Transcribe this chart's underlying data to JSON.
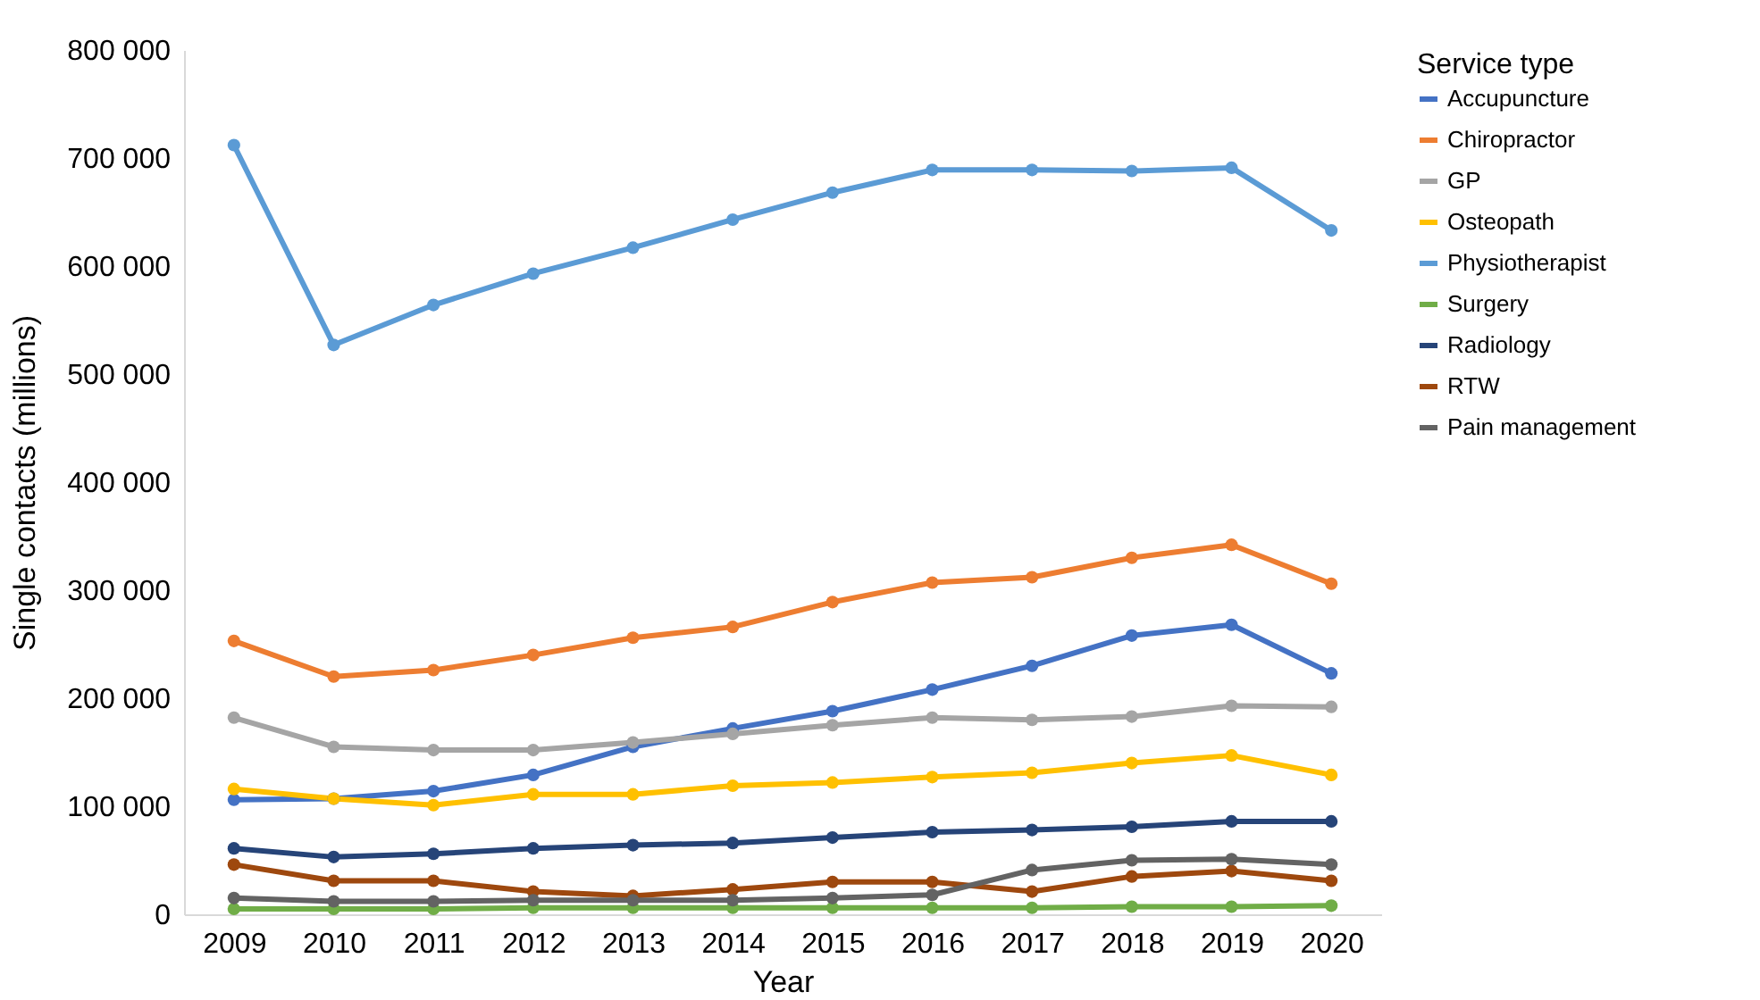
{
  "chart_data": {
    "type": "line",
    "xlabel": "Year",
    "ylabel": "Single contacts (millions)",
    "legend_title": "Service type",
    "legend": "right",
    "marker": "circle",
    "grid": false,
    "categories": [
      "2009",
      "2010",
      "2011",
      "2012",
      "2013",
      "2014",
      "2015",
      "2016",
      "2017",
      "2018",
      "2019",
      "2020"
    ],
    "ylim": [
      0,
      800000
    ],
    "yticks": [
      {
        "value": 0,
        "label": "0"
      },
      {
        "value": 100000,
        "label": "100 000"
      },
      {
        "value": 200000,
        "label": "200 000"
      },
      {
        "value": 300000,
        "label": "300 000"
      },
      {
        "value": 400000,
        "label": "400 000"
      },
      {
        "value": 500000,
        "label": "500 000"
      },
      {
        "value": 600000,
        "label": "600 000"
      },
      {
        "value": 700000,
        "label": "700 000"
      },
      {
        "value": 800000,
        "label": "800 000"
      }
    ],
    "series": [
      {
        "name": "Accupuncture",
        "color": "#4472c4",
        "values": [
          106000,
          107000,
          114000,
          129000,
          155000,
          172000,
          188000,
          208000,
          230000,
          258000,
          268000,
          223000
        ]
      },
      {
        "name": "Chiropractor",
        "color": "#ed7d31",
        "values": [
          253000,
          220000,
          226000,
          240000,
          256000,
          266000,
          289000,
          307000,
          312000,
          330000,
          342000,
          306000
        ]
      },
      {
        "name": "GP",
        "color": "#a5a5a5",
        "values": [
          182000,
          155000,
          152000,
          152000,
          159000,
          167000,
          175000,
          182000,
          180000,
          183000,
          193000,
          192000
        ]
      },
      {
        "name": "Osteopath",
        "color": "#ffc000",
        "values": [
          116000,
          107000,
          101000,
          111000,
          111000,
          119000,
          122000,
          127000,
          131000,
          140000,
          147000,
          129000
        ]
      },
      {
        "name": "Physiotherapist",
        "color": "#5b9bd5",
        "values": [
          712000,
          527000,
          564000,
          593000,
          617000,
          643000,
          668000,
          689000,
          689000,
          688000,
          691000,
          633000
        ]
      },
      {
        "name": "Surgery",
        "color": "#70ad47",
        "values": [
          5000,
          5000,
          5000,
          6000,
          6000,
          6000,
          6000,
          6000,
          6000,
          7000,
          7000,
          8000
        ]
      },
      {
        "name": "Radiology",
        "color": "#264478",
        "values": [
          61000,
          53000,
          56000,
          61000,
          64000,
          66000,
          71000,
          76000,
          78000,
          81000,
          86000,
          86000
        ]
      },
      {
        "name": "RTW",
        "color": "#9e480e",
        "values": [
          46000,
          31000,
          31000,
          21000,
          17000,
          23000,
          30000,
          30000,
          21000,
          35000,
          40000,
          31000
        ]
      },
      {
        "name": "Pain management",
        "color": "#636363",
        "values": [
          15000,
          12000,
          12000,
          13000,
          13000,
          13000,
          15000,
          18000,
          41000,
          50000,
          51000,
          46000
        ]
      }
    ]
  }
}
